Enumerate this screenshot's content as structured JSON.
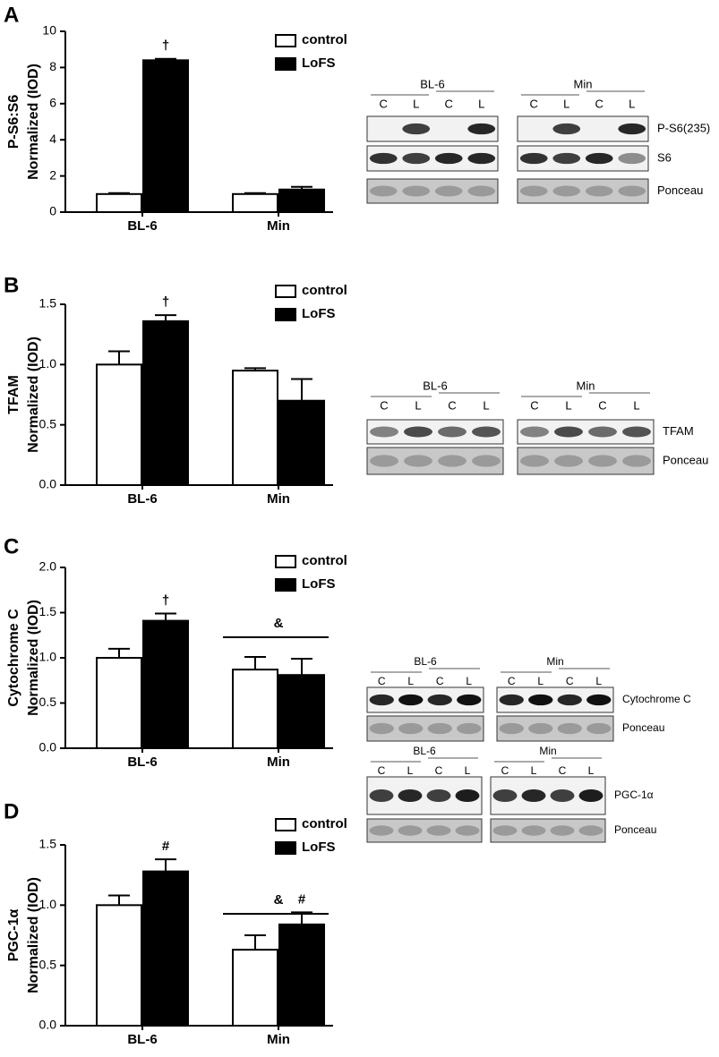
{
  "chart_data": [
    {
      "type": "bar",
      "panel": "A",
      "ylabel": [
        "P-S6:S6",
        "Normalized (IOD)"
      ],
      "categories": [
        "BL-6",
        "Min"
      ],
      "series": [
        {
          "name": "control",
          "color": "#ffffff",
          "values": [
            1.0,
            1.0
          ],
          "errors": [
            0.05,
            0.05
          ]
        },
        {
          "name": "LoFS",
          "color": "#000000",
          "values": [
            8.4,
            1.25
          ],
          "errors": [
            0.08,
            0.15
          ]
        }
      ],
      "ylim": [
        0,
        10
      ],
      "yticks": [
        0,
        2,
        4,
        6,
        8,
        10
      ],
      "annotations": [
        {
          "text": "†"
        }
      ],
      "blot": {
        "groups": [
          "BL-6",
          "Min"
        ],
        "lanes": [
          "C",
          "L",
          "C",
          "L"
        ],
        "rows": [
          "P-S6(235)",
          "S6",
          "Ponceau"
        ]
      }
    },
    {
      "type": "bar",
      "panel": "B",
      "ylabel": [
        "TFAM",
        "Normalized (IOD)"
      ],
      "categories": [
        "BL-6",
        "Min"
      ],
      "series": [
        {
          "name": "control",
          "color": "#ffffff",
          "values": [
            1.0,
            0.95
          ],
          "errors": [
            0.11,
            0.02
          ]
        },
        {
          "name": "LoFS",
          "color": "#000000",
          "values": [
            1.36,
            0.7
          ],
          "errors": [
            0.05,
            0.18
          ]
        }
      ],
      "ylim": [
        0,
        1.5
      ],
      "yticks": [
        {
          "value": 0,
          "label": "0.0"
        },
        0.5,
        {
          "value": 1,
          "label": "1.0"
        },
        1.5
      ],
      "annotations": [
        {
          "text": "†"
        }
      ],
      "blot": {
        "groups": [
          "BL-6",
          "Min"
        ],
        "lanes": [
          "C",
          "L",
          "C",
          "L"
        ],
        "rows": [
          "TFAM",
          "Ponceau"
        ]
      }
    },
    {
      "type": "bar",
      "panel": "C",
      "ylabel": [
        "Cytochrome C",
        "Normalized (IOD)"
      ],
      "categories": [
        "BL-6",
        "Min"
      ],
      "series": [
        {
          "name": "control",
          "color": "#ffffff",
          "values": [
            1.0,
            0.87
          ],
          "errors": [
            0.1,
            0.14
          ]
        },
        {
          "name": "LoFS",
          "color": "#000000",
          "values": [
            1.41,
            0.81
          ],
          "errors": [
            0.08,
            0.18
          ]
        }
      ],
      "ylim": [
        0,
        2
      ],
      "yticks": [
        {
          "value": 0,
          "label": "0.0"
        },
        0.5,
        {
          "value": 1,
          "label": "1.0"
        },
        1.5,
        {
          "value": 2,
          "label": "2.0"
        }
      ],
      "annotations": [
        {
          "text": "†"
        },
        {
          "text": "&"
        }
      ],
      "blot": {
        "groups": [
          "BL-6",
          "Min"
        ],
        "lanes": [
          "C",
          "L",
          "C",
          "L"
        ],
        "rows": [
          "Cytochrome C",
          "Ponceau"
        ]
      }
    },
    {
      "type": "bar",
      "panel": "D",
      "ylabel": [
        "PGC-1α",
        "Normalized (IOD)"
      ],
      "categories": [
        "BL-6",
        "Min"
      ],
      "series": [
        {
          "name": "control",
          "color": "#ffffff",
          "values": [
            1.0,
            0.63
          ],
          "errors": [
            0.08,
            0.12
          ]
        },
        {
          "name": "LoFS",
          "color": "#000000",
          "values": [
            1.28,
            0.84
          ],
          "errors": [
            0.1,
            0.1
          ]
        }
      ],
      "ylim": [
        0,
        1.5
      ],
      "yticks": [
        {
          "value": 0,
          "label": "0.0"
        },
        0.5,
        {
          "value": 1,
          "label": "1.0"
        },
        1.5
      ],
      "annotations": [
        {
          "text": "#"
        },
        {
          "text": "&"
        },
        {
          "text": "#"
        }
      ],
      "blot": {
        "groups": [
          "BL-6",
          "Min"
        ],
        "lanes": [
          "C",
          "L",
          "C",
          "L"
        ],
        "rows": [
          "PGC-1α",
          "Ponceau"
        ]
      }
    }
  ]
}
